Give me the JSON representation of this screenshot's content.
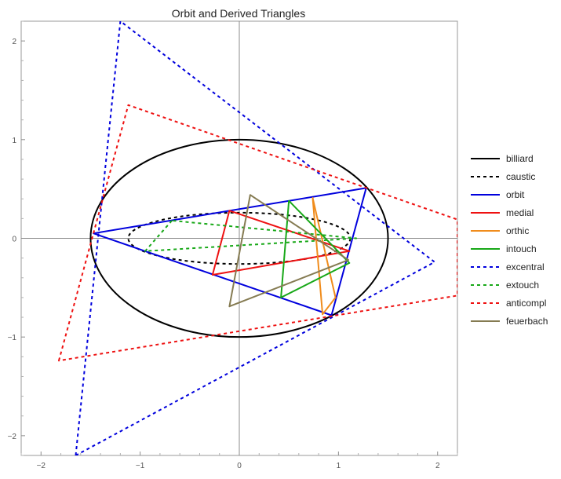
{
  "chart_data": {
    "type": "line",
    "title": "Orbit and Derived Triangles",
    "xlabel": "",
    "ylabel": "",
    "xlim": [
      -2.2,
      2.2
    ],
    "ylim": [
      -2.2,
      2.2
    ],
    "xticks": [
      -2,
      -1,
      0,
      1,
      2
    ],
    "yticks": [
      -2,
      -1,
      0,
      1,
      2
    ],
    "xtick_labels": [
      "−2",
      "−1",
      "0",
      "1",
      "2"
    ],
    "ytick_labels": [
      "−2",
      "−1",
      "0",
      "1",
      "2"
    ],
    "grid": false,
    "legend_position": "right",
    "series": [
      {
        "name": "billiard",
        "kind": "ellipse",
        "color": "#000000",
        "dashed": false,
        "cx": 0,
        "cy": 0,
        "rx": 1.5,
        "ry": 1.0
      },
      {
        "name": "caustic",
        "kind": "ellipse",
        "color": "#000000",
        "dashed": true,
        "cx": 0,
        "cy": 0,
        "rx": 1.12,
        "ry": 0.26
      },
      {
        "name": "orbit",
        "kind": "polygon",
        "color": "#0000dd",
        "dashed": false,
        "points": [
          [
            -1.47,
            0.05
          ],
          [
            1.28,
            0.51
          ],
          [
            0.93,
            -0.78
          ]
        ]
      },
      {
        "name": "medial",
        "kind": "polygon",
        "color": "#ee1111",
        "dashed": false,
        "points": [
          [
            -0.1,
            0.28
          ],
          [
            1.11,
            -0.13
          ],
          [
            -0.27,
            -0.37
          ]
        ]
      },
      {
        "name": "orthic",
        "kind": "polygon",
        "color": "#f08c1c",
        "dashed": false,
        "points": [
          [
            0.74,
            0.41
          ],
          [
            0.84,
            -0.77
          ],
          [
            0.97,
            -0.6
          ]
        ]
      },
      {
        "name": "intouch",
        "kind": "polygon",
        "color": "#18a818",
        "dashed": false,
        "points": [
          [
            0.5,
            0.38
          ],
          [
            1.11,
            -0.25
          ],
          [
            0.42,
            -0.6
          ]
        ]
      },
      {
        "name": "excentral",
        "kind": "polygon",
        "color": "#0000dd",
        "dashed": true,
        "points": [
          [
            -1.65,
            -2.2
          ],
          [
            -1.2,
            2.2
          ],
          [
            1.97,
            -0.24
          ]
        ]
      },
      {
        "name": "extouch",
        "kind": "polygon",
        "color": "#18a818",
        "dashed": true,
        "points": [
          [
            -0.68,
            0.18
          ],
          [
            -0.95,
            -0.13
          ],
          [
            1.18,
            0.0
          ]
        ]
      },
      {
        "name": "anticompl",
        "kind": "polygon",
        "color": "#ee1111",
        "dashed": true,
        "points": [
          [
            -1.82,
            -1.24
          ],
          [
            -1.12,
            1.35
          ],
          [
            2.2,
            0.19
          ],
          [
            2.2,
            -0.58
          ]
        ]
      },
      {
        "name": "feuerbach",
        "kind": "polygon",
        "color": "#857b52",
        "dashed": false,
        "points": [
          [
            0.11,
            0.44
          ],
          [
            1.1,
            -0.22
          ],
          [
            -0.1,
            -0.69
          ]
        ]
      }
    ]
  }
}
